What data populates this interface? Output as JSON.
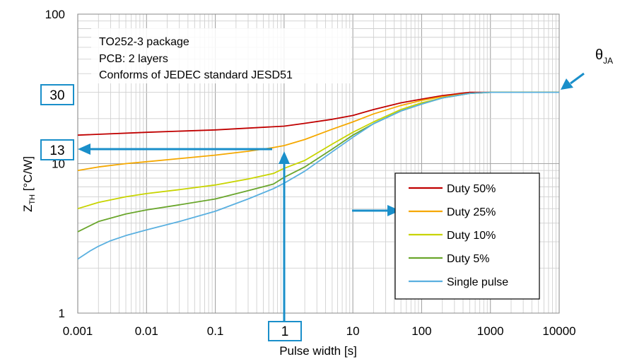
{
  "chart_data": {
    "type": "line",
    "x_scale": "log",
    "y_scale": "log",
    "xlim": [
      0.001,
      10000
    ],
    "ylim": [
      1,
      100
    ],
    "grid": true,
    "x_ticks": [
      "0.001",
      "0.01",
      "0.1",
      "1",
      "10",
      "100",
      "1000",
      "10000"
    ],
    "y_ticks": [
      "1",
      "10",
      "100"
    ],
    "xlabel": "Pulse width [s]",
    "ylabel_main": "Z",
    "ylabel_sub": "TH",
    "ylabel_unit": " [°C/W]",
    "legend_position": "lower-right",
    "info_lines": [
      "TO252-3 package",
      "PCB: 2 layers",
      "Conforms of JEDEC standard JESD51"
    ],
    "series": [
      {
        "name": "Duty 50%",
        "color": "#c00000",
        "x": [
          0.001,
          0.01,
          0.1,
          1,
          2,
          5,
          10,
          20,
          50,
          100,
          200,
          500,
          1000,
          10000
        ],
        "y": [
          15.5,
          16.2,
          16.8,
          17.8,
          18.6,
          19.8,
          21,
          23,
          25.5,
          27,
          28.5,
          30,
          30,
          30
        ]
      },
      {
        "name": "Duty 25%",
        "color": "#f5a800",
        "x": [
          0.001,
          0.002,
          0.005,
          0.01,
          0.03,
          0.1,
          0.3,
          0.7,
          1,
          2,
          5,
          10,
          20,
          50,
          100,
          200,
          500,
          1000,
          10000
        ],
        "y": [
          9,
          9.5,
          10,
          10.3,
          10.8,
          11.4,
          12.1,
          12.8,
          13.2,
          14.5,
          17,
          19,
          21.5,
          24.5,
          26.5,
          28,
          29.5,
          30,
          30
        ]
      },
      {
        "name": "Duty 10%",
        "color": "#c8d400",
        "x": [
          0.001,
          0.002,
          0.005,
          0.01,
          0.03,
          0.1,
          0.3,
          0.7,
          1,
          2,
          5,
          10,
          20,
          50,
          100,
          200,
          500,
          1000,
          10000
        ],
        "y": [
          5,
          5.5,
          6,
          6.3,
          6.7,
          7.2,
          7.9,
          8.6,
          9.3,
          10.5,
          13.5,
          16.2,
          19,
          23,
          25.5,
          27.5,
          29.5,
          30,
          30
        ]
      },
      {
        "name": "Duty 5%",
        "color": "#6aa62c",
        "x": [
          0.001,
          0.002,
          0.005,
          0.01,
          0.03,
          0.1,
          0.3,
          0.7,
          1,
          2,
          5,
          10,
          20,
          50,
          100,
          200,
          500,
          1000,
          10000
        ],
        "y": [
          3.5,
          4.1,
          4.6,
          4.9,
          5.3,
          5.8,
          6.6,
          7.3,
          8.1,
          9.5,
          12.5,
          15.5,
          18.5,
          22.5,
          25,
          27.5,
          29.5,
          30,
          30
        ]
      },
      {
        "name": "Single pulse",
        "color": "#5ab0e0",
        "x": [
          0.001,
          0.0015,
          0.002,
          0.003,
          0.005,
          0.01,
          0.03,
          0.1,
          0.3,
          0.7,
          1,
          2,
          5,
          10,
          20,
          50,
          100,
          200,
          500,
          1000,
          10000
        ],
        "y": [
          2.3,
          2.6,
          2.8,
          3.05,
          3.3,
          3.6,
          4.1,
          4.8,
          5.8,
          6.8,
          7.4,
          8.9,
          12,
          15,
          18.5,
          22.5,
          25,
          27.5,
          29.5,
          30,
          30
        ]
      }
    ],
    "annotations": {
      "theta_main": "θ",
      "theta_sub": "JA",
      "box_30": "30",
      "box_13": "13",
      "box_1": "1",
      "annotation_color": "#1a8fca"
    }
  }
}
